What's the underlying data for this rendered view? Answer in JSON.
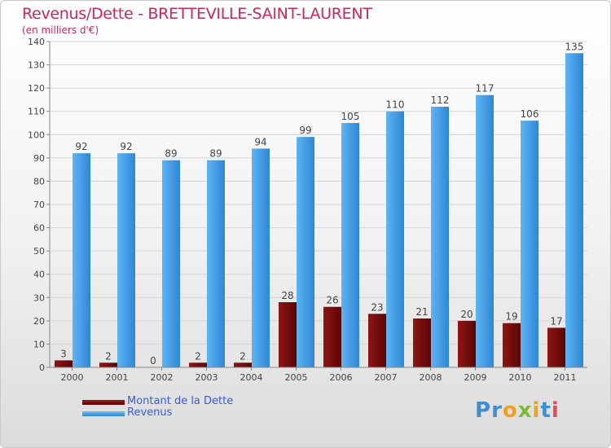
{
  "chart_data": {
    "type": "bar",
    "title": "Revenus/Dette - BRETTEVILLE-SAINT-LAURENT",
    "subtitle": "(en milliers d'€)",
    "categories": [
      "2000",
      "2001",
      "2002",
      "2003",
      "2004",
      "2005",
      "2006",
      "2007",
      "2008",
      "2009",
      "2010",
      "2011"
    ],
    "series": [
      {
        "name": "Montant de la Dette",
        "color": "#7a0a0a",
        "values": [
          3,
          2,
          0,
          2,
          2,
          28,
          26,
          23,
          21,
          20,
          19,
          17
        ]
      },
      {
        "name": "Revenus",
        "color": "#4ba3e8",
        "values": [
          92,
          92,
          89,
          89,
          94,
          99,
          105,
          110,
          112,
          117,
          106,
          135
        ]
      }
    ],
    "ylim": [
      0,
      140
    ],
    "yticks": [
      0,
      10,
      20,
      30,
      40,
      50,
      60,
      70,
      80,
      90,
      100,
      110,
      120,
      130,
      140
    ],
    "grid": true,
    "legend": "bottom-left",
    "data_labels": true
  },
  "logo_text": "Proxiti"
}
